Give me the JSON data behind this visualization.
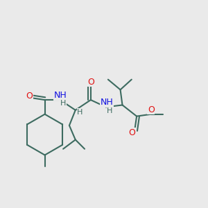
{
  "bg_color": "#eaeaea",
  "bond_color": "#3d6b60",
  "O_color": "#e01010",
  "N_color": "#1010e0",
  "H_color": "#3d6b60",
  "bond_width": 1.5,
  "figsize": [
    3.0,
    3.0
  ],
  "dpi": 100,
  "xlim": [
    0,
    10
  ],
  "ylim": [
    0,
    10
  ]
}
